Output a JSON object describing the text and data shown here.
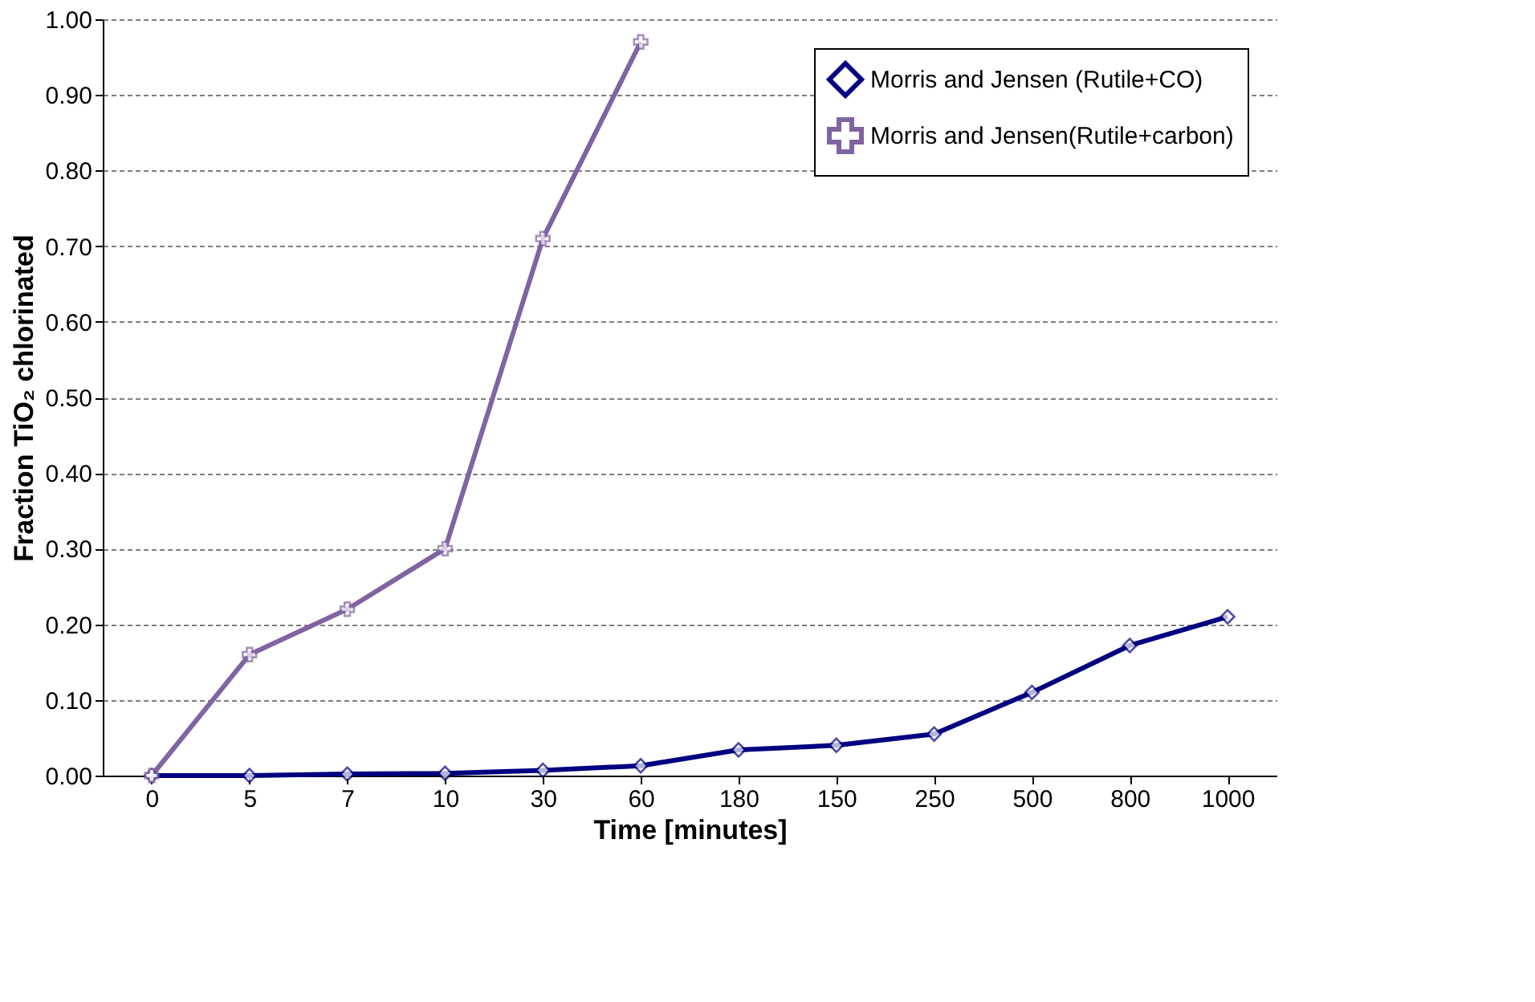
{
  "chart_data": {
    "type": "line",
    "xlabel": "Time [minutes]",
    "ylabel": "Fraction TiO₂ chlorinated",
    "categories": [
      "0",
      "5",
      "7",
      "10",
      "30",
      "60",
      "180",
      "150",
      "250",
      "500",
      "800",
      "1000"
    ],
    "series": [
      {
        "name": "Morris and Jensen (Rutile+CO)",
        "color": "#000080",
        "marker": "diamond",
        "values": [
          0.0,
          0.0,
          0.002,
          0.003,
          0.007,
          0.013,
          0.034,
          0.04,
          0.055,
          0.11,
          0.172,
          0.21
        ]
      },
      {
        "name": "Morris and Jensen(Rutile+carbon)",
        "color": "#8064a2",
        "marker": "cross",
        "values": [
          0.0,
          0.16,
          0.22,
          0.3,
          0.71,
          0.97,
          null,
          null,
          null,
          null,
          null,
          null
        ]
      }
    ],
    "ylim": [
      0,
      1
    ],
    "yticks": [
      {
        "value": 0,
        "label": "0.00"
      },
      {
        "value": 0.1,
        "label": "0.10"
      },
      {
        "value": 0.2,
        "label": "0.20"
      },
      {
        "value": 0.3,
        "label": "0.30"
      },
      {
        "value": 0.4,
        "label": "0.40"
      },
      {
        "value": 0.5,
        "label": "0.50"
      },
      {
        "value": 0.6,
        "label": "0.60"
      },
      {
        "value": 0.7,
        "label": "0.70"
      },
      {
        "value": 0.8,
        "label": "0.80"
      },
      {
        "value": 0.9,
        "label": "0.90"
      },
      {
        "value": 1,
        "label": "1.00"
      }
    ],
    "grid": "y",
    "legend": "top right"
  }
}
